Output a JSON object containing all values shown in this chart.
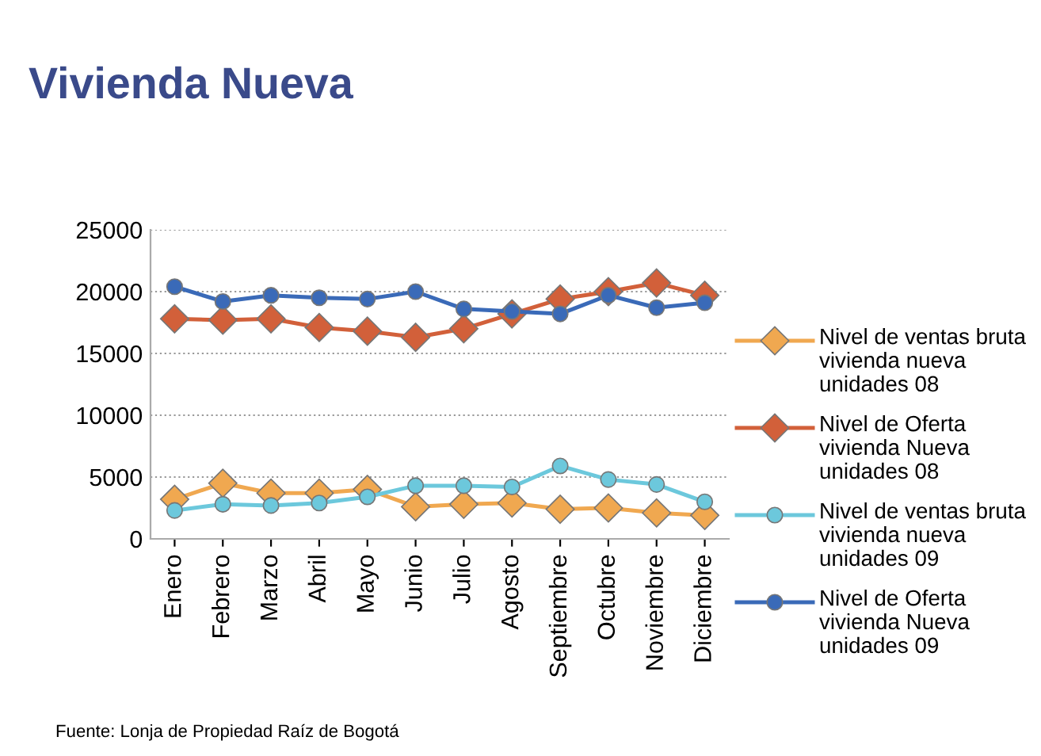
{
  "chart_data": {
    "type": "line",
    "title": "Vivienda Nueva",
    "categories": [
      "Enero",
      "Febrero",
      "Marzo",
      "Abril",
      "Mayo",
      "Junio",
      "Julio",
      "Agosto",
      "Septiembre",
      "Octubre",
      "Noviembre",
      "Diciembre"
    ],
    "series": [
      {
        "name": "Nivel de ventas bruta vivienda nueva unidades 08",
        "color": "#f0a850",
        "marker": "diamond",
        "values": [
          3200,
          4500,
          3700,
          3700,
          4000,
          2600,
          2800,
          2900,
          2400,
          2500,
          2100,
          1900
        ]
      },
      {
        "name": "Nivel de Oferta vivienda Nueva unidades 08",
        "color": "#d2603a",
        "marker": "diamond",
        "values": [
          17800,
          17700,
          17800,
          17100,
          16800,
          16300,
          17000,
          18200,
          19400,
          20000,
          20700,
          19700
        ]
      },
      {
        "name": "Nivel de ventas bruta vivienda nueva unidades 09",
        "color": "#6cc8dc",
        "marker": "circle",
        "values": [
          2300,
          2800,
          2700,
          2900,
          3400,
          4300,
          4300,
          4200,
          5900,
          4800,
          4400,
          3000
        ]
      },
      {
        "name": "Nivel de Oferta vivienda Nueva unidades 09",
        "color": "#3a6ab8",
        "marker": "circle",
        "values": [
          20400,
          19200,
          19700,
          19500,
          19400,
          20000,
          18600,
          18400,
          18200,
          19700,
          18700,
          19100
        ]
      }
    ],
    "ylim": [
      0,
      25000
    ],
    "yticks": [
      0,
      5000,
      10000,
      15000,
      20000,
      25000
    ],
    "grid": "y",
    "legend": "right",
    "annotations": [
      "Fuente: Lonja de Propiedad Raíz de Bogotá"
    ]
  }
}
